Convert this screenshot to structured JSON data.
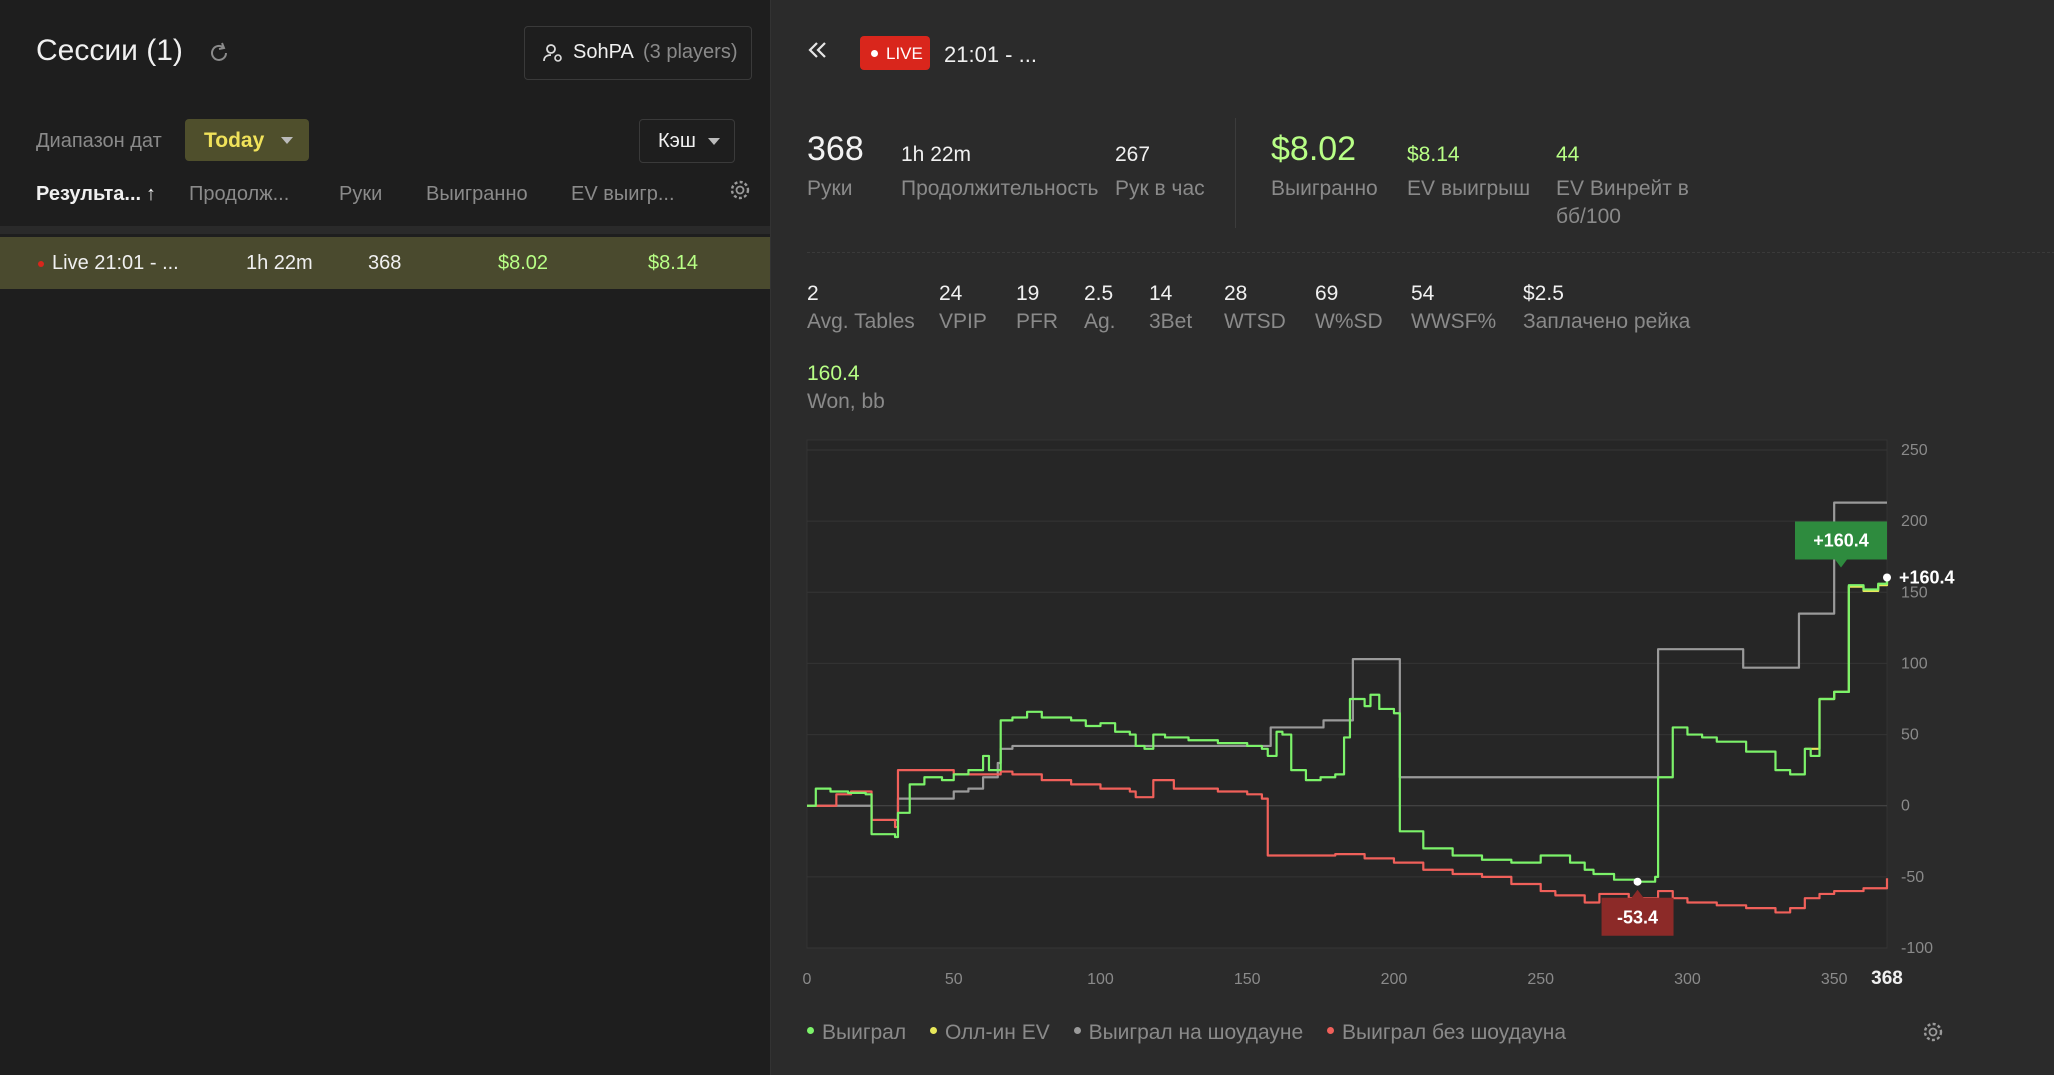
{
  "sidebar": {
    "title": "Сессии (1)",
    "player_filter": {
      "name": "SohPA",
      "count": "(3 players)"
    },
    "date_label": "Диапазон дат",
    "date_value": "Today",
    "game_type": "Кэш",
    "columns": [
      "Результа...",
      "Продолж...",
      "Руки",
      "Выигранно",
      "EV выигр..."
    ],
    "sort_arrow": "↑",
    "session": {
      "name": "Live 21:01 - ...",
      "duration": "1h 22m",
      "hands": "368",
      "won": "$8.02",
      "ev": "$8.14"
    }
  },
  "header": {
    "back_icon": "double-chevron-left-icon",
    "live_badge": "LIVE",
    "session_title": "21:01 - ..."
  },
  "stats_top": [
    {
      "value": "368",
      "label": "Руки"
    },
    {
      "value": "1h 22m",
      "label": "Продолжительность"
    },
    {
      "value": "267",
      "label": "Рук в час"
    },
    {
      "value": "$8.02",
      "label": "Выигранно"
    },
    {
      "value": "$8.14",
      "label": "EV выигрыш"
    },
    {
      "value": "44",
      "label": "EV Винрейт в",
      "label2": "бб/100"
    }
  ],
  "stats_row2": [
    {
      "value": "2",
      "label": "Avg. Tables"
    },
    {
      "value": "24",
      "label": "VPIP"
    },
    {
      "value": "19",
      "label": "PFR"
    },
    {
      "value": "2.5",
      "label": "Ag."
    },
    {
      "value": "14",
      "label": "3Bet"
    },
    {
      "value": "28",
      "label": "WTSD"
    },
    {
      "value": "69",
      "label": "W%SD"
    },
    {
      "value": "54",
      "label": "WWSF%"
    },
    {
      "value": "$2.5",
      "label": "Заплачено рейка"
    }
  ],
  "stats_row3": {
    "value": "160.4",
    "label": "Won, bb"
  },
  "colors": {
    "won": "#7cf26a",
    "allin_ev": "#e8e85a",
    "showdown": "#9a9a9a",
    "non_showdown": "#f0605a",
    "live": "#d9261c",
    "selected_row": "#4a4a2e"
  },
  "chart_data": {
    "type": "line",
    "xlim": [
      0,
      368
    ],
    "ylim": [
      -100,
      250
    ],
    "x_ticks": [
      "0",
      "50",
      "100",
      "150",
      "200",
      "250",
      "300",
      "350"
    ],
    "x_end_label": "368",
    "y_ticks": [
      "250",
      "200",
      "150",
      "100",
      "50",
      "0",
      "-50",
      "-100"
    ],
    "annotations": {
      "max_label": "+160.4",
      "end_label": "+160.4",
      "min_label": "-53.4"
    },
    "series": [
      {
        "name": "Выиграл",
        "color": "#7cf26a",
        "points": [
          [
            0,
            0
          ],
          [
            3,
            12
          ],
          [
            8,
            10
          ],
          [
            14,
            9
          ],
          [
            20,
            8
          ],
          [
            22,
            -20
          ],
          [
            30,
            -22
          ],
          [
            31,
            -5
          ],
          [
            35,
            15
          ],
          [
            40,
            20
          ],
          [
            46,
            18
          ],
          [
            50,
            22
          ],
          [
            55,
            25
          ],
          [
            60,
            35
          ],
          [
            62,
            25
          ],
          [
            66,
            60
          ],
          [
            70,
            62
          ],
          [
            75,
            66
          ],
          [
            80,
            62
          ],
          [
            90,
            60
          ],
          [
            95,
            56
          ],
          [
            100,
            58
          ],
          [
            105,
            52
          ],
          [
            110,
            50
          ],
          [
            112,
            42
          ],
          [
            115,
            40
          ],
          [
            118,
            50
          ],
          [
            122,
            48
          ],
          [
            130,
            46
          ],
          [
            140,
            44
          ],
          [
            150,
            42
          ],
          [
            155,
            40
          ],
          [
            157,
            35
          ],
          [
            160,
            52
          ],
          [
            162,
            50
          ],
          [
            165,
            25
          ],
          [
            170,
            18
          ],
          [
            175,
            20
          ],
          [
            180,
            22
          ],
          [
            183,
            48
          ],
          [
            185,
            75
          ],
          [
            190,
            70
          ],
          [
            192,
            78
          ],
          [
            195,
            68
          ],
          [
            200,
            65
          ],
          [
            202,
            -18
          ],
          [
            210,
            -30
          ],
          [
            220,
            -35
          ],
          [
            230,
            -38
          ],
          [
            240,
            -40
          ],
          [
            250,
            -35
          ],
          [
            260,
            -40
          ],
          [
            265,
            -45
          ],
          [
            268,
            -48
          ],
          [
            275,
            -52
          ],
          [
            283,
            -53.4
          ],
          [
            289,
            -50
          ],
          [
            290,
            20
          ],
          [
            295,
            55
          ],
          [
            300,
            50
          ],
          [
            305,
            48
          ],
          [
            310,
            45
          ],
          [
            320,
            38
          ],
          [
            330,
            25
          ],
          [
            335,
            22
          ],
          [
            340,
            40
          ],
          [
            342,
            35
          ],
          [
            345,
            75
          ],
          [
            350,
            80
          ],
          [
            355,
            82
          ],
          [
            355,
            155
          ],
          [
            360,
            152
          ],
          [
            365,
            156
          ],
          [
            368,
            160.4
          ]
        ]
      },
      {
        "name": "Олл-ин EV",
        "color": "#e8e85a",
        "points": [
          [
            340,
            40
          ],
          [
            345,
            75
          ],
          [
            350,
            80
          ],
          [
            355,
            82
          ],
          [
            355,
            154
          ],
          [
            360,
            151
          ],
          [
            365,
            155
          ],
          [
            368,
            159
          ]
        ]
      },
      {
        "name": "Выиграл на шоудауне",
        "color": "#9a9a9a",
        "points": [
          [
            0,
            0
          ],
          [
            15,
            0
          ],
          [
            22,
            -10
          ],
          [
            30,
            -10
          ],
          [
            31,
            5
          ],
          [
            45,
            5
          ],
          [
            50,
            10
          ],
          [
            55,
            12
          ],
          [
            60,
            20
          ],
          [
            65,
            30
          ],
          [
            66,
            40
          ],
          [
            70,
            42
          ],
          [
            100,
            42
          ],
          [
            130,
            42
          ],
          [
            157,
            42
          ],
          [
            158,
            55
          ],
          [
            175,
            55
          ],
          [
            176,
            60
          ],
          [
            185,
            60
          ],
          [
            186,
            103
          ],
          [
            201,
            103
          ],
          [
            202,
            20
          ],
          [
            250,
            20
          ],
          [
            289,
            20
          ],
          [
            290,
            110
          ],
          [
            318,
            110
          ],
          [
            319,
            97
          ],
          [
            337,
            97
          ],
          [
            338,
            135
          ],
          [
            349,
            135
          ],
          [
            350,
            213
          ],
          [
            368,
            213
          ]
        ]
      },
      {
        "name": "Выиграл без шоудауна",
        "color": "#f0605a",
        "points": [
          [
            0,
            0
          ],
          [
            10,
            8
          ],
          [
            15,
            10
          ],
          [
            20,
            10
          ],
          [
            22,
            -10
          ],
          [
            30,
            -15
          ],
          [
            31,
            25
          ],
          [
            40,
            25
          ],
          [
            50,
            22
          ],
          [
            60,
            22
          ],
          [
            66,
            24
          ],
          [
            70,
            22
          ],
          [
            80,
            18
          ],
          [
            90,
            15
          ],
          [
            100,
            12
          ],
          [
            110,
            10
          ],
          [
            112,
            6
          ],
          [
            118,
            18
          ],
          [
            125,
            12
          ],
          [
            140,
            10
          ],
          [
            150,
            8
          ],
          [
            155,
            5
          ],
          [
            157,
            -35
          ],
          [
            180,
            -34
          ],
          [
            190,
            -37
          ],
          [
            200,
            -40
          ],
          [
            210,
            -45
          ],
          [
            220,
            -48
          ],
          [
            230,
            -50
          ],
          [
            240,
            -55
          ],
          [
            250,
            -60
          ],
          [
            255,
            -63
          ],
          [
            265,
            -68
          ],
          [
            270,
            -62
          ],
          [
            280,
            -65
          ],
          [
            290,
            -60
          ],
          [
            295,
            -65
          ],
          [
            300,
            -68
          ],
          [
            310,
            -70
          ],
          [
            320,
            -72
          ],
          [
            330,
            -75
          ],
          [
            335,
            -72
          ],
          [
            340,
            -65
          ],
          [
            345,
            -62
          ],
          [
            350,
            -60
          ],
          [
            360,
            -58
          ],
          [
            368,
            -51
          ]
        ]
      }
    ],
    "legend": [
      "Выиграл",
      "Олл-ин EV",
      "Выиграл на шоудауне",
      "Выиграл без шоудауна"
    ],
    "legend_placement": "bottom-left"
  }
}
